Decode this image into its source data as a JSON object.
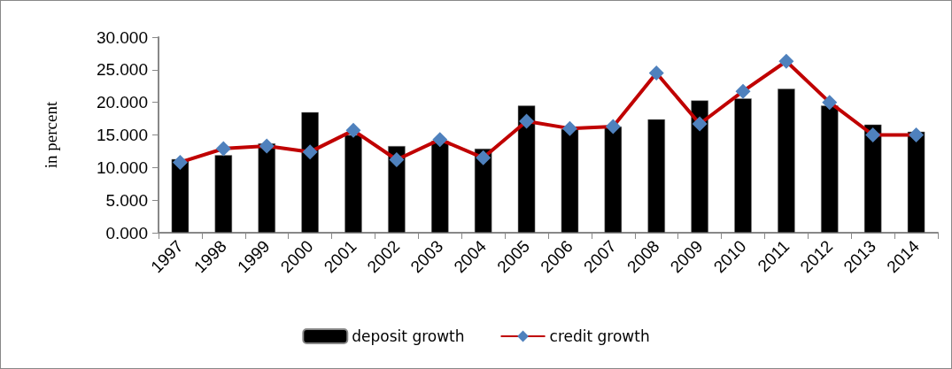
{
  "chart_data": {
    "type": "bar",
    "ylabel": "in percent",
    "categories": [
      "1997",
      "1998",
      "1999",
      "2000",
      "2001",
      "2002",
      "2003",
      "2004",
      "2005",
      "2006",
      "2007",
      "2008",
      "2009",
      "2010",
      "2011",
      "2012",
      "2013",
      "2014"
    ],
    "series": [
      {
        "name": "deposit growth",
        "color": "#000000",
        "values": [
          11.3,
          11.9,
          13.7,
          18.5,
          15.0,
          13.3,
          14.1,
          12.9,
          19.5,
          15.9,
          16.3,
          17.4,
          20.3,
          20.6,
          22.1,
          19.5,
          16.6,
          15.5
        ]
      },
      {
        "name": "credit growth",
        "type": "line",
        "color": "#c00000",
        "marker": "diamond",
        "values": [
          10.8,
          12.9,
          13.3,
          12.4,
          15.7,
          11.2,
          14.3,
          11.5,
          17.1,
          16.0,
          16.3,
          24.5,
          16.7,
          21.7,
          26.3,
          20.0,
          15.0,
          15.0
        ]
      }
    ],
    "ylim": [
      0,
      30
    ],
    "yticks": [
      {
        "value": 0,
        "label": "0.000"
      },
      {
        "value": 5,
        "label": "5.000"
      },
      {
        "value": 10,
        "label": "10.000"
      },
      {
        "value": 15,
        "label": "15.000"
      },
      {
        "value": 20,
        "label": "20.000"
      },
      {
        "value": 25,
        "label": "25.000"
      },
      {
        "value": 30,
        "label": "30.000"
      }
    ],
    "grid": false,
    "legend": "bottom"
  }
}
